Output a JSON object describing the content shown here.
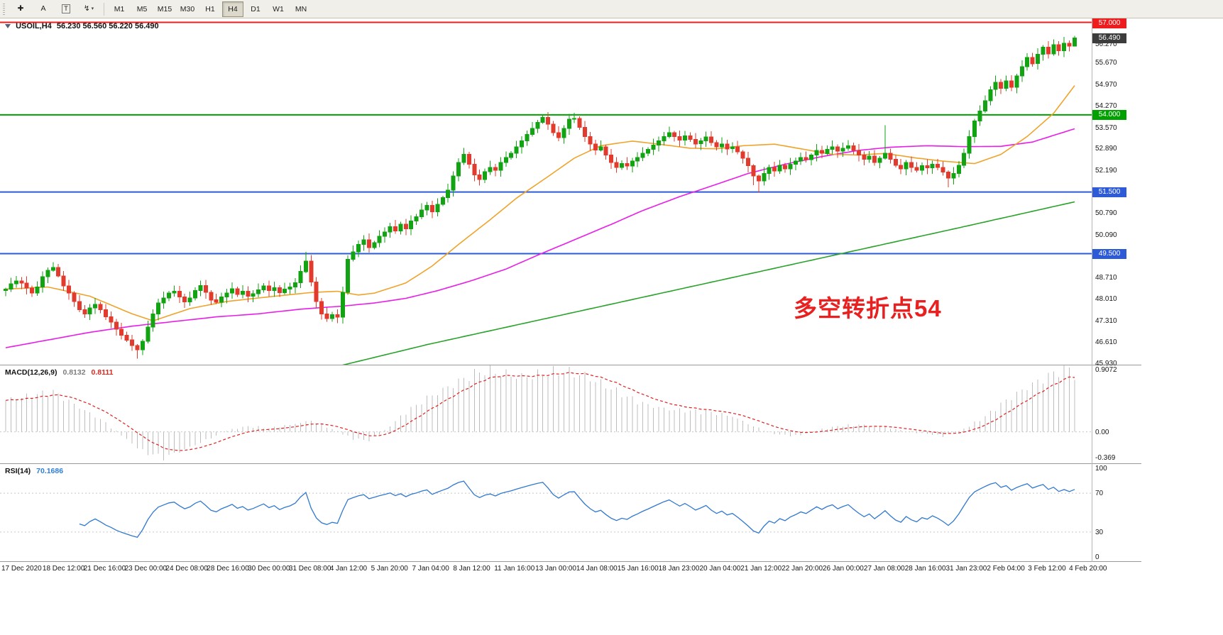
{
  "toolbar": {
    "tools": [
      {
        "name": "crosshair",
        "glyph": "✚"
      },
      {
        "name": "text-annotation",
        "glyph": "A"
      },
      {
        "name": "text-label",
        "glyph": "T",
        "boxed": true
      },
      {
        "name": "cycle-lines",
        "glyph": "↯",
        "caret": true
      }
    ],
    "timeframes": [
      "M1",
      "M5",
      "M15",
      "M30",
      "H1",
      "H4",
      "D1",
      "W1",
      "MN"
    ],
    "active_timeframe": "H4"
  },
  "header": {
    "symbol": "USOIL,H4",
    "ohlc": "56.230 56.560 56.220 56.490"
  },
  "annotation": {
    "text": "多空转折点54",
    "color": "#e82020"
  },
  "hlines": [
    {
      "value": 57.0,
      "label": "57.000",
      "color": "#ee1c1c",
      "line": true,
      "width": 2
    },
    {
      "value": 56.49,
      "label": "56.490",
      "color": "#3c3c3c",
      "line": false,
      "width": 0
    },
    {
      "value": 54.0,
      "label": "54.000",
      "color": "#00a000",
      "line": true,
      "width": 2
    },
    {
      "value": 51.5,
      "label": "51.500",
      "color": "#2d5bd8",
      "line": true,
      "width": 2
    },
    {
      "value": 49.5,
      "label": "49.500",
      "color": "#2d5bd8",
      "line": true,
      "width": 2
    }
  ],
  "price_axis": {
    "min": 45.9,
    "max": 57.15,
    "ticks": [
      56.97,
      56.27,
      55.67,
      54.97,
      54.27,
      53.57,
      52.89,
      52.19,
      51.49,
      50.79,
      50.09,
      49.39,
      48.71,
      48.01,
      47.31,
      46.61,
      45.93
    ]
  },
  "time_axis": {
    "labels": [
      "17 Dec 2020",
      "18 Dec 12:00",
      "21 Dec 16:00",
      "23 Dec 00:00",
      "24 Dec 08:00",
      "28 Dec 16:00",
      "30 Dec 00:00",
      "31 Dec 08:00",
      "4 Jan 12:00",
      "5 Jan 20:00",
      "7 Jan 04:00",
      "8 Jan 12:00",
      "11 Jan 16:00",
      "13 Jan 00:00",
      "14 Jan 08:00",
      "15 Jan 16:00",
      "18 Jan 23:00",
      "20 Jan 04:00",
      "21 Jan 12:00",
      "22 Jan 20:00",
      "26 Jan 00:00",
      "27 Jan 08:00",
      "28 Jan 16:00",
      "31 Jan 23:00",
      "2 Feb 04:00",
      "3 Feb 12:00",
      "4 Feb 20:00"
    ]
  },
  "colors": {
    "up": "#12a312",
    "down": "#e23b2e",
    "ma_fast": "#efa32a",
    "ma_mid": "#e81ee8",
    "ma_slow": "#28a228",
    "macd_hist": "#bdbdbd",
    "macd_signal": "#e02020",
    "rsi": "#3078d0"
  },
  "chart_data": {
    "type": "candlestick",
    "symbol": "USOIL",
    "timeframe": "H4",
    "candles": {
      "first_open": 48.3,
      "closes": [
        48.35,
        48.52,
        48.62,
        48.55,
        48.38,
        48.22,
        48.42,
        48.75,
        48.96,
        49.05,
        48.78,
        48.45,
        48.22,
        47.95,
        47.68,
        47.55,
        47.74,
        47.86,
        47.68,
        47.45,
        47.28,
        47.05,
        46.86,
        46.7,
        46.52,
        46.38,
        46.66,
        47.12,
        47.55,
        47.9,
        48.06,
        48.22,
        48.28,
        48.1,
        47.94,
        48.06,
        48.3,
        48.46,
        48.25,
        48.0,
        47.92,
        48.1,
        48.22,
        48.36,
        48.18,
        48.28,
        48.12,
        48.2,
        48.33,
        48.45,
        48.3,
        48.4,
        48.24,
        48.35,
        48.42,
        48.56,
        48.92,
        49.26,
        48.58,
        47.95,
        47.55,
        47.4,
        47.52,
        47.44,
        48.25,
        49.32,
        49.56,
        49.8,
        49.95,
        49.7,
        49.86,
        50.06,
        50.2,
        50.38,
        50.24,
        50.45,
        50.3,
        50.56,
        50.7,
        50.92,
        51.06,
        50.86,
        51.1,
        51.32,
        51.56,
        52.02,
        52.46,
        52.72,
        52.4,
        52.05,
        51.9,
        52.16,
        52.3,
        52.2,
        52.46,
        52.62,
        52.76,
        52.96,
        53.16,
        53.36,
        53.56,
        53.76,
        53.92,
        53.7,
        53.42,
        53.26,
        53.56,
        53.86,
        53.88,
        53.6,
        53.3,
        53.05,
        52.86,
        52.96,
        52.7,
        52.46,
        52.3,
        52.42,
        52.34,
        52.5,
        52.62,
        52.76,
        52.88,
        53.02,
        53.16,
        53.3,
        53.42,
        53.3,
        53.18,
        53.32,
        53.2,
        53.06,
        53.16,
        53.28,
        53.1,
        52.96,
        53.06,
        52.9,
        52.96,
        52.8,
        52.6,
        52.35,
        52.02,
        51.86,
        52.1,
        52.3,
        52.18,
        52.36,
        52.25,
        52.4,
        52.5,
        52.62,
        52.55,
        52.7,
        52.85,
        52.75,
        52.88,
        52.96,
        52.82,
        52.92,
        53.0,
        52.85,
        52.7,
        52.56,
        52.66,
        52.46,
        52.6,
        52.76,
        52.56,
        52.36,
        52.25,
        52.46,
        52.3,
        52.2,
        52.35,
        52.28,
        52.4,
        52.3,
        52.15,
        51.95,
        52.1,
        52.36,
        52.76,
        53.3,
        53.8,
        54.12,
        54.46,
        54.82,
        55.06,
        54.86,
        55.1,
        54.9,
        55.26,
        55.56,
        55.86,
        55.66,
        55.96,
        56.2,
        55.98,
        56.28,
        56.08,
        56.32,
        56.23,
        56.49
      ],
      "wick_overrides": {
        "9": [
          0.18,
          0.05
        ],
        "25": [
          0.05,
          0.28
        ],
        "57": [
          0.3,
          0.05
        ],
        "65": [
          0.12,
          0.08
        ],
        "102": [
          0.1,
          0.05
        ],
        "142": [
          0.05,
          0.3
        ],
        "143": [
          0.05,
          0.38
        ],
        "167": [
          0.9,
          0.05
        ],
        "179": [
          0.05,
          0.3
        ]
      },
      "last": {
        "o": 56.23,
        "h": 56.56,
        "l": 56.22,
        "c": 56.49
      }
    },
    "overlays": {
      "ma_fast_orange": [
        [
          0,
          48.35
        ],
        [
          8,
          48.42
        ],
        [
          16,
          48.12
        ],
        [
          24,
          47.55
        ],
        [
          28,
          47.32
        ],
        [
          35,
          47.72
        ],
        [
          42,
          47.95
        ],
        [
          50,
          48.1
        ],
        [
          58,
          48.24
        ],
        [
          63,
          48.28
        ],
        [
          67,
          48.16
        ],
        [
          70,
          48.22
        ],
        [
          76,
          48.55
        ],
        [
          81,
          49.1
        ],
        [
          86,
          49.8
        ],
        [
          92,
          50.6
        ],
        [
          97,
          51.3
        ],
        [
          103,
          52.0
        ],
        [
          108,
          52.6
        ],
        [
          113,
          53.0
        ],
        [
          119,
          53.15
        ],
        [
          124,
          53.05
        ],
        [
          130,
          52.92
        ],
        [
          135,
          52.9
        ],
        [
          140,
          53.0
        ],
        [
          146,
          53.05
        ],
        [
          151,
          52.9
        ],
        [
          157,
          52.72
        ],
        [
          162,
          52.7
        ],
        [
          167,
          52.75
        ],
        [
          173,
          52.6
        ],
        [
          178,
          52.5
        ],
        [
          184,
          52.42
        ],
        [
          189,
          52.72
        ],
        [
          194,
          53.3
        ],
        [
          199,
          54.05
        ],
        [
          203,
          54.95
        ]
      ],
      "ma_mid_magenta": [
        [
          0,
          46.45
        ],
        [
          8,
          46.7
        ],
        [
          16,
          46.95
        ],
        [
          24,
          47.15
        ],
        [
          32,
          47.3
        ],
        [
          40,
          47.45
        ],
        [
          48,
          47.55
        ],
        [
          56,
          47.7
        ],
        [
          64,
          47.8
        ],
        [
          70,
          47.9
        ],
        [
          76,
          48.05
        ],
        [
          82,
          48.3
        ],
        [
          88,
          48.6
        ],
        [
          95,
          49.0
        ],
        [
          101,
          49.45
        ],
        [
          108,
          49.95
        ],
        [
          115,
          50.45
        ],
        [
          121,
          50.9
        ],
        [
          128,
          51.35
        ],
        [
          135,
          51.75
        ],
        [
          141,
          52.1
        ],
        [
          148,
          52.4
        ],
        [
          155,
          52.65
        ],
        [
          162,
          52.85
        ],
        [
          168,
          52.95
        ],
        [
          175,
          53.0
        ],
        [
          182,
          52.97
        ],
        [
          189,
          52.98
        ],
        [
          195,
          53.12
        ],
        [
          203,
          53.55
        ]
      ],
      "ma_slow_green": [
        [
          60,
          45.72
        ],
        [
          80,
          46.55
        ],
        [
          100,
          47.3
        ],
        [
          120,
          48.05
        ],
        [
          140,
          48.8
        ],
        [
          160,
          49.55
        ],
        [
          180,
          50.3
        ],
        [
          203,
          51.18
        ]
      ]
    },
    "macd": {
      "label": "MACD(12,26,9)",
      "values": [
        "0.8132",
        "0.8111"
      ],
      "axis": [
        {
          "value": 0.9072,
          "text": "0.9072"
        },
        {
          "value": 0,
          "text": "0.00"
        },
        {
          "value": -0.369,
          "text": "-0.369"
        }
      ],
      "range": [
        -0.45,
        0.95
      ],
      "hist_points": [
        [
          0,
          0.45
        ],
        [
          5,
          0.52
        ],
        [
          9,
          0.57
        ],
        [
          14,
          0.35
        ],
        [
          18,
          0.18
        ],
        [
          22,
          -0.05
        ],
        [
          26,
          -0.28
        ],
        [
          30,
          -0.37
        ],
        [
          34,
          -0.25
        ],
        [
          38,
          -0.12
        ],
        [
          42,
          0.02
        ],
        [
          46,
          0.08
        ],
        [
          50,
          0.05
        ],
        [
          54,
          0.1
        ],
        [
          58,
          0.16
        ],
        [
          62,
          0.04
        ],
        [
          66,
          -0.1
        ],
        [
          69,
          -0.12
        ],
        [
          72,
          0.02
        ],
        [
          76,
          0.28
        ],
        [
          80,
          0.48
        ],
        [
          84,
          0.64
        ],
        [
          88,
          0.8
        ],
        [
          91,
          0.88
        ],
        [
          94,
          0.84
        ],
        [
          98,
          0.78
        ],
        [
          102,
          0.83
        ],
        [
          106,
          0.87
        ],
        [
          110,
          0.8
        ],
        [
          114,
          0.66
        ],
        [
          118,
          0.5
        ],
        [
          122,
          0.38
        ],
        [
          126,
          0.32
        ],
        [
          130,
          0.3
        ],
        [
          134,
          0.28
        ],
        [
          138,
          0.22
        ],
        [
          142,
          0.08
        ],
        [
          146,
          -0.03
        ],
        [
          150,
          -0.06
        ],
        [
          154,
          0.02
        ],
        [
          158,
          0.08
        ],
        [
          162,
          0.1
        ],
        [
          166,
          0.08
        ],
        [
          170,
          0.02
        ],
        [
          174,
          -0.02
        ],
        [
          178,
          -0.06
        ],
        [
          182,
          0.04
        ],
        [
          186,
          0.22
        ],
        [
          190,
          0.45
        ],
        [
          194,
          0.64
        ],
        [
          198,
          0.8
        ],
        [
          201,
          0.9
        ],
        [
          202,
          0.91
        ],
        [
          203,
          0.81
        ]
      ]
    },
    "rsi": {
      "label": "RSI(14)",
      "value": "70.1686",
      "levels": [
        70,
        30
      ],
      "axis": [
        {
          "value": 100,
          "text": "100"
        },
        {
          "value": 70,
          "text": "70"
        },
        {
          "value": 30,
          "text": "30"
        },
        {
          "value": 0,
          "text": "0"
        }
      ],
      "range": [
        0,
        100
      ]
    }
  }
}
